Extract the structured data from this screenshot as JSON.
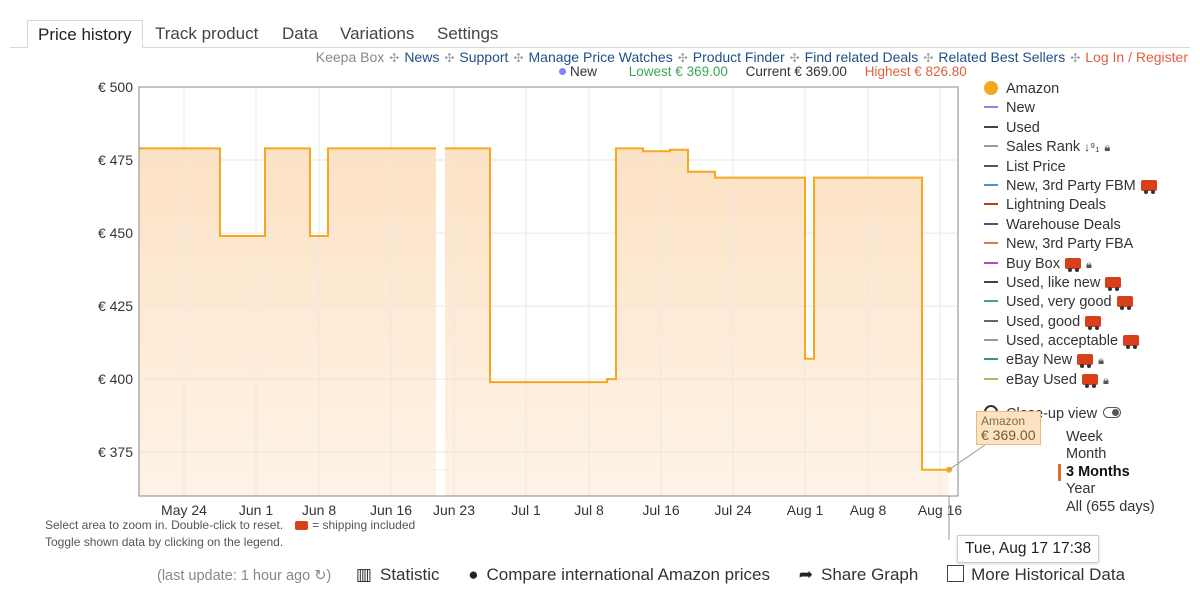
{
  "tabs": [
    "Price history",
    "Track product",
    "Data",
    "Variations",
    "Settings"
  ],
  "topnav": {
    "keepa_box": "Keepa Box",
    "news": "News",
    "support": "Support",
    "manage": "Manage Price Watches",
    "finder": "Product Finder",
    "related_deals": "Find related Deals",
    "best_sellers": "Related Best Sellers",
    "login": "Log In / Register"
  },
  "summary": {
    "new": "New",
    "lowest": "Lowest € 369.00",
    "current": "Current € 369.00",
    "highest": "Highest € 826.80",
    "colors": {
      "lowest": "#3aa655",
      "current": "#333333",
      "highest": "#e06040"
    }
  },
  "legend": [
    {
      "label": "Amazon",
      "color": "#f4a81d"
    },
    {
      "label": "New",
      "color": "#8888ee"
    },
    {
      "label": "Used",
      "color": "#444444"
    },
    {
      "label": "Sales Rank",
      "color": "#999999"
    },
    {
      "label": "List Price",
      "color": "#555555"
    },
    {
      "label": "New, 3rd Party FBM",
      "color": "#3a9ad8"
    },
    {
      "label": "Lightning Deals",
      "color": "#c0392b"
    },
    {
      "label": "Warehouse Deals",
      "color": "#7a3d8a"
    },
    {
      "label": "New, 3rd Party FBA",
      "color": "#e07b50"
    },
    {
      "label": "Buy Box",
      "color": "#c23fc2"
    },
    {
      "label": "Used, like new",
      "color": "#444444"
    },
    {
      "label": "Used, very good",
      "color": "#3aa5a0"
    },
    {
      "label": "Used, good",
      "color": "#666666"
    },
    {
      "label": "Used, acceptable",
      "color": "#999999"
    },
    {
      "label": "eBay New",
      "color": "#2a9a8a"
    },
    {
      "label": "eBay Used",
      "color": "#a0c060"
    }
  ],
  "closeup_label": "Close-up view",
  "ranges": {
    "items": [
      "Week",
      "Month",
      "3 Months",
      "Year",
      "All (655 days)"
    ],
    "selected": "3 Months"
  },
  "tooltip": {
    "series": "Amazon",
    "price": "€ 369.00"
  },
  "hover_date": "Tue, Aug 17 17:38",
  "hint": {
    "line1": "Select area to zoom in. Double-click to reset.",
    "shipping": "= shipping included",
    "line2": "Toggle shown data by clicking on the legend."
  },
  "bottom": {
    "last_update": "(last update: 1 hour ago",
    "statistic": "Statistic",
    "compare": "Compare international Amazon prices",
    "share": "Share Graph",
    "historical": "More Historical Data"
  },
  "chart_data": {
    "type": "line",
    "series_name": "Amazon",
    "ylim": [
      360,
      500
    ],
    "yticks": [
      375,
      400,
      425,
      450,
      475,
      500
    ],
    "ytick_labels": [
      "€ 375",
      "€ 400",
      "€ 425",
      "€ 450",
      "€ 475",
      "€ 500"
    ],
    "xticks": [
      "2021-05-24",
      "2021-06-01",
      "2021-06-08",
      "2021-06-16",
      "2021-06-23",
      "2021-07-01",
      "2021-07-08",
      "2021-07-16",
      "2021-07-24",
      "2021-08-01",
      "2021-08-08",
      "2021-08-16"
    ],
    "xtick_labels": [
      "May 24",
      "Jun 1",
      "Jun 8",
      "Jun 16",
      "Jun 23",
      "Jul 1",
      "Jul 8",
      "Jul 16",
      "Jul 24",
      "Aug 1",
      "Aug 8",
      "Aug 16"
    ],
    "xlim": [
      "2021-05-19",
      "2021-08-18"
    ],
    "grid": true,
    "segments": [
      [
        [
          "2021-05-19",
          479
        ],
        [
          "2021-05-28",
          479
        ],
        [
          "2021-05-28",
          449
        ],
        [
          "2021-06-02",
          449
        ],
        [
          "2021-06-02",
          479
        ],
        [
          "2021-06-07",
          479
        ],
        [
          "2021-06-07",
          449
        ],
        [
          "2021-06-09",
          449
        ],
        [
          "2021-06-09",
          479
        ],
        [
          "2021-06-21",
          479
        ]
      ],
      [
        [
          "2021-06-22",
          479
        ],
        [
          "2021-06-27",
          479
        ],
        [
          "2021-06-27",
          399
        ],
        [
          "2021-07-10",
          399
        ],
        [
          "2021-07-10",
          400
        ],
        [
          "2021-07-11",
          400
        ],
        [
          "2021-07-11",
          479
        ],
        [
          "2021-07-14",
          479
        ],
        [
          "2021-07-14",
          478
        ],
        [
          "2021-07-17",
          478
        ],
        [
          "2021-07-17",
          478.5
        ],
        [
          "2021-07-19",
          478.5
        ],
        [
          "2021-07-19",
          471
        ],
        [
          "2021-07-22",
          471
        ],
        [
          "2021-07-22",
          469
        ],
        [
          "2021-07-26",
          469
        ],
        [
          "2021-07-26",
          469
        ],
        [
          "2021-08-01",
          469
        ],
        [
          "2021-08-01",
          407
        ],
        [
          "2021-08-02",
          407
        ],
        [
          "2021-08-02",
          469
        ],
        [
          "2021-08-14",
          469
        ],
        [
          "2021-08-14",
          399
        ],
        [
          "2021-08-14",
          369
        ],
        [
          "2021-08-17",
          369
        ]
      ]
    ]
  }
}
